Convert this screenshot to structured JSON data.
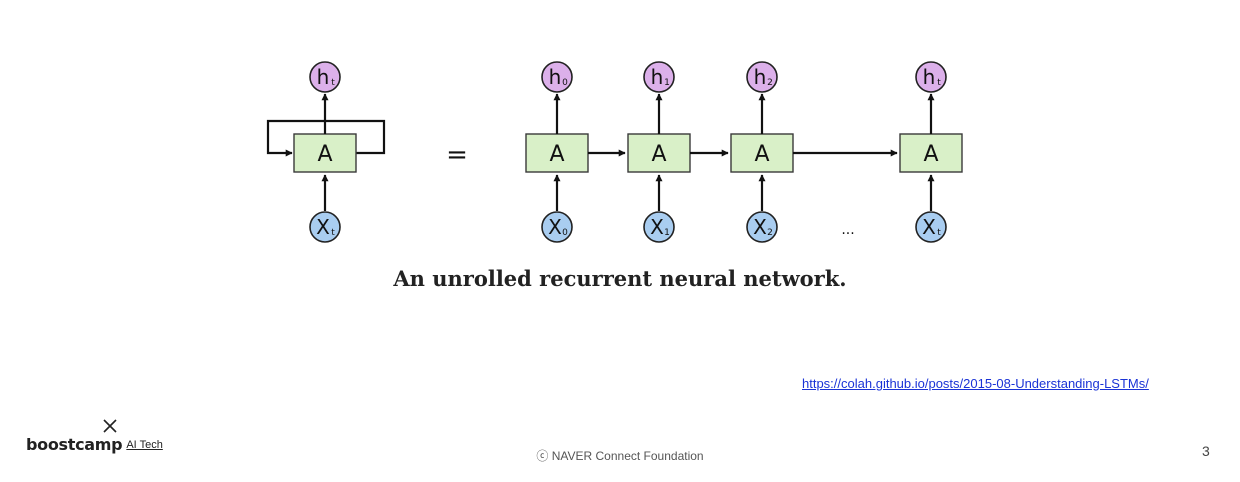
{
  "diagram": {
    "title": "An unrolled recurrent neural network.",
    "rolled": {
      "cell": "A",
      "input": "X",
      "input_sub": "t",
      "output": "h",
      "output_sub": "t"
    },
    "equals": "=",
    "unrolled_steps": [
      {
        "cell": "A",
        "input": "X",
        "input_sub": "0",
        "output": "h",
        "output_sub": "0"
      },
      {
        "cell": "A",
        "input": "X",
        "input_sub": "1",
        "output": "h",
        "output_sub": "1"
      },
      {
        "cell": "A",
        "input": "X",
        "input_sub": "2",
        "output": "h",
        "output_sub": "2"
      },
      {
        "cell": "A",
        "input": "X",
        "input_sub": "t",
        "output": "h",
        "output_sub": "t"
      }
    ],
    "ellipsis": "...",
    "colors": {
      "cell_fill": "#d9f0c8",
      "cell_stroke": "#3a3a3a",
      "input_fill": "#a9cdf0",
      "output_fill": "#dcb0ea",
      "arrow": "#111111"
    }
  },
  "source_url": "https://colah.github.io/posts/2015-08-Understanding-LSTMs/",
  "brand": {
    "name": "boostcamp",
    "sub": "AI Tech",
    "icon": "x-mark-icon"
  },
  "footer": "ⓒ NAVER Connect Foundation",
  "page_number": "3"
}
